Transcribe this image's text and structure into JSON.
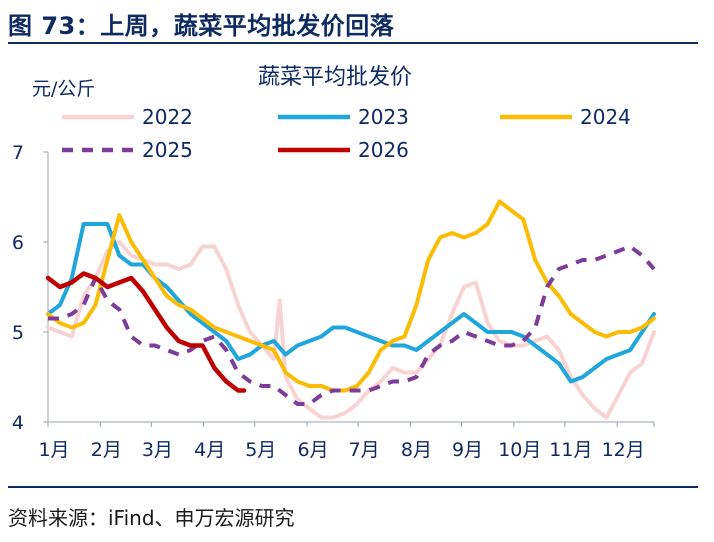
{
  "header": {
    "figure_title": "图 73：上周，蔬菜平均批发价回落"
  },
  "footer": {
    "source": "资料来源：iFind、申万宏源研究"
  },
  "chart_data": {
    "type": "line",
    "title": "蔬菜平均批发价",
    "ylabel": "元/公斤",
    "ylim": [
      4,
      7
    ],
    "yticks": [
      4,
      5,
      6,
      7
    ],
    "xlim": [
      1,
      52
    ],
    "x_unit": "week of year",
    "categories": [
      "1月",
      "2月",
      "3月",
      "4月",
      "5月",
      "6月",
      "7月",
      "8月",
      "9月",
      "10月",
      "11月",
      "12月"
    ],
    "category_week_positions": [
      1,
      5.4,
      9.7,
      14.1,
      18.4,
      22.8,
      27.1,
      31.5,
      35.8,
      40.2,
      44.5,
      48.9
    ],
    "legend": {
      "placement": "top",
      "columns": 3
    },
    "grid": false,
    "series": [
      {
        "name": "2022",
        "color": "#f8d3d3",
        "dash": "solid",
        "points": [
          [
            1,
            5.05
          ],
          [
            2,
            5.0
          ],
          [
            3,
            4.95
          ],
          [
            4,
            5.4
          ],
          [
            5,
            5.6
          ],
          [
            6,
            5.9
          ],
          [
            7,
            6.0
          ],
          [
            8,
            5.85
          ],
          [
            9,
            5.8
          ],
          [
            10,
            5.75
          ],
          [
            11,
            5.75
          ],
          [
            12,
            5.7
          ],
          [
            13,
            5.75
          ],
          [
            14,
            5.95
          ],
          [
            15,
            5.95
          ],
          [
            16,
            5.7
          ],
          [
            17,
            5.3
          ],
          [
            18,
            5.0
          ],
          [
            19,
            4.85
          ],
          [
            20,
            4.7
          ],
          [
            20.5,
            5.35
          ],
          [
            21,
            4.5
          ],
          [
            22,
            4.25
          ],
          [
            23,
            4.15
          ],
          [
            24,
            4.05
          ],
          [
            25,
            4.05
          ],
          [
            26,
            4.1
          ],
          [
            27,
            4.2
          ],
          [
            28,
            4.35
          ],
          [
            29,
            4.45
          ],
          [
            30,
            4.6
          ],
          [
            31,
            4.55
          ],
          [
            32,
            4.55
          ],
          [
            33,
            4.7
          ],
          [
            34,
            4.85
          ],
          [
            35,
            5.2
          ],
          [
            36,
            5.5
          ],
          [
            37,
            5.55
          ],
          [
            38,
            5.1
          ],
          [
            39,
            4.9
          ],
          [
            40,
            4.85
          ],
          [
            41,
            4.85
          ],
          [
            42,
            4.9
          ],
          [
            43,
            4.95
          ],
          [
            44,
            4.8
          ],
          [
            45,
            4.5
          ],
          [
            46,
            4.3
          ],
          [
            47,
            4.15
          ],
          [
            48,
            4.05
          ],
          [
            49,
            4.3
          ],
          [
            50,
            4.55
          ],
          [
            51,
            4.65
          ],
          [
            52,
            5.0
          ]
        ]
      },
      {
        "name": "2023",
        "color": "#1fa6dc",
        "dash": "solid",
        "points": [
          [
            1,
            5.2
          ],
          [
            2,
            5.3
          ],
          [
            3,
            5.6
          ],
          [
            4,
            6.2
          ],
          [
            5,
            6.2
          ],
          [
            6,
            6.2
          ],
          [
            7,
            5.85
          ],
          [
            8,
            5.75
          ],
          [
            9,
            5.75
          ],
          [
            10,
            5.6
          ],
          [
            11,
            5.5
          ],
          [
            12,
            5.35
          ],
          [
            13,
            5.2
          ],
          [
            14,
            5.1
          ],
          [
            15,
            5.0
          ],
          [
            16,
            4.9
          ],
          [
            17,
            4.7
          ],
          [
            18,
            4.75
          ],
          [
            19,
            4.85
          ],
          [
            20,
            4.9
          ],
          [
            21,
            4.75
          ],
          [
            22,
            4.85
          ],
          [
            23,
            4.9
          ],
          [
            24,
            4.95
          ],
          [
            25,
            5.05
          ],
          [
            26,
            5.05
          ],
          [
            27,
            5.0
          ],
          [
            28,
            4.95
          ],
          [
            29,
            4.9
          ],
          [
            30,
            4.85
          ],
          [
            31,
            4.85
          ],
          [
            32,
            4.8
          ],
          [
            33,
            4.9
          ],
          [
            34,
            5.0
          ],
          [
            35,
            5.1
          ],
          [
            36,
            5.2
          ],
          [
            37,
            5.1
          ],
          [
            38,
            5.0
          ],
          [
            39,
            5.0
          ],
          [
            40,
            5.0
          ],
          [
            41,
            4.95
          ],
          [
            42,
            4.85
          ],
          [
            43,
            4.75
          ],
          [
            44,
            4.65
          ],
          [
            45,
            4.45
          ],
          [
            46,
            4.5
          ],
          [
            47,
            4.6
          ],
          [
            48,
            4.7
          ],
          [
            49,
            4.75
          ],
          [
            50,
            4.8
          ],
          [
            51,
            5.0
          ],
          [
            52,
            5.2
          ]
        ]
      },
      {
        "name": "2024",
        "color": "#fbbc05",
        "dash": "solid",
        "points": [
          [
            1,
            5.2
          ],
          [
            2,
            5.1
          ],
          [
            3,
            5.05
          ],
          [
            4,
            5.1
          ],
          [
            5,
            5.3
          ],
          [
            6,
            5.8
          ],
          [
            7,
            6.3
          ],
          [
            8,
            6.0
          ],
          [
            9,
            5.8
          ],
          [
            10,
            5.6
          ],
          [
            11,
            5.4
          ],
          [
            12,
            5.3
          ],
          [
            13,
            5.25
          ],
          [
            14,
            5.15
          ],
          [
            15,
            5.05
          ],
          [
            16,
            5.0
          ],
          [
            17,
            4.95
          ],
          [
            18,
            4.9
          ],
          [
            19,
            4.85
          ],
          [
            20,
            4.8
          ],
          [
            21,
            4.55
          ],
          [
            22,
            4.45
          ],
          [
            23,
            4.4
          ],
          [
            24,
            4.4
          ],
          [
            25,
            4.35
          ],
          [
            26,
            4.35
          ],
          [
            27,
            4.4
          ],
          [
            28,
            4.55
          ],
          [
            29,
            4.8
          ],
          [
            30,
            4.9
          ],
          [
            31,
            4.95
          ],
          [
            32,
            5.3
          ],
          [
            33,
            5.8
          ],
          [
            34,
            6.05
          ],
          [
            35,
            6.1
          ],
          [
            36,
            6.05
          ],
          [
            37,
            6.1
          ],
          [
            38,
            6.2
          ],
          [
            39,
            6.45
          ],
          [
            40,
            6.35
          ],
          [
            41,
            6.25
          ],
          [
            42,
            5.8
          ],
          [
            43,
            5.55
          ],
          [
            44,
            5.4
          ],
          [
            45,
            5.2
          ],
          [
            46,
            5.1
          ],
          [
            47,
            5.0
          ],
          [
            48,
            4.95
          ],
          [
            49,
            5.0
          ],
          [
            50,
            5.0
          ],
          [
            51,
            5.05
          ],
          [
            52,
            5.15
          ]
        ]
      },
      {
        "name": "2025",
        "color": "#7d3c98",
        "dash": "dashed",
        "points": [
          [
            1,
            5.15
          ],
          [
            2,
            5.15
          ],
          [
            3,
            5.2
          ],
          [
            4,
            5.3
          ],
          [
            5,
            5.6
          ],
          [
            6,
            5.35
          ],
          [
            7,
            5.25
          ],
          [
            8,
            4.95
          ],
          [
            9,
            4.85
          ],
          [
            10,
            4.85
          ],
          [
            11,
            4.8
          ],
          [
            12,
            4.75
          ],
          [
            13,
            4.8
          ],
          [
            14,
            4.9
          ],
          [
            15,
            4.95
          ],
          [
            16,
            4.8
          ],
          [
            17,
            4.55
          ],
          [
            18,
            4.45
          ],
          [
            19,
            4.4
          ],
          [
            20,
            4.4
          ],
          [
            21,
            4.3
          ],
          [
            22,
            4.2
          ],
          [
            23,
            4.2
          ],
          [
            24,
            4.3
          ],
          [
            25,
            4.35
          ],
          [
            26,
            4.35
          ],
          [
            27,
            4.35
          ],
          [
            28,
            4.35
          ],
          [
            29,
            4.4
          ],
          [
            30,
            4.45
          ],
          [
            31,
            4.45
          ],
          [
            32,
            4.5
          ],
          [
            33,
            4.75
          ],
          [
            34,
            4.85
          ],
          [
            35,
            4.9
          ],
          [
            36,
            5.0
          ],
          [
            37,
            4.95
          ],
          [
            38,
            4.9
          ],
          [
            39,
            4.85
          ],
          [
            40,
            4.85
          ],
          [
            41,
            4.9
          ],
          [
            42,
            5.05
          ],
          [
            43,
            5.5
          ],
          [
            44,
            5.7
          ],
          [
            45,
            5.75
          ],
          [
            46,
            5.8
          ],
          [
            47,
            5.8
          ],
          [
            48,
            5.85
          ],
          [
            49,
            5.9
          ],
          [
            50,
            5.95
          ],
          [
            51,
            5.85
          ],
          [
            52,
            5.7
          ]
        ]
      },
      {
        "name": "2026",
        "color": "#c00000",
        "dash": "solid",
        "points": [
          [
            1,
            5.6
          ],
          [
            2,
            5.5
          ],
          [
            3,
            5.55
          ],
          [
            4,
            5.65
          ],
          [
            5,
            5.6
          ],
          [
            6,
            5.5
          ],
          [
            7,
            5.55
          ],
          [
            8,
            5.6
          ],
          [
            9,
            5.45
          ],
          [
            10,
            5.25
          ],
          [
            11,
            5.05
          ],
          [
            12,
            4.9
          ],
          [
            13,
            4.85
          ],
          [
            14,
            4.85
          ],
          [
            15,
            4.6
          ],
          [
            16,
            4.45
          ],
          [
            17,
            4.35
          ],
          [
            17.5,
            4.35
          ]
        ]
      }
    ]
  }
}
